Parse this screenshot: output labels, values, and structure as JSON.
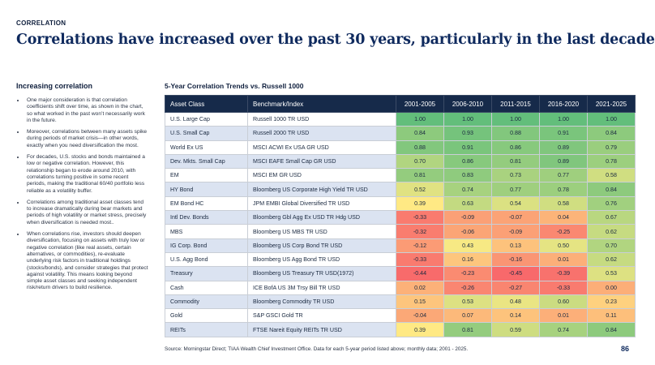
{
  "header": {
    "kicker": "CORRELATION",
    "title": "Correlations have increased over the past 30 years, particularly in the last decade"
  },
  "sidebar": {
    "title": "Increasing correlation",
    "bullets": [
      "One major consideration is that correlation coefficients shift over time, as shown in the chart, so what worked in the past won’t necessarily work in the future.",
      "Moreover, correlations between many assets spike during periods of market crisis—in other words, exactly when you need diversification the most.",
      "For decades, U.S. stocks and bonds maintained a low or negative correlation. However, this relationship began to erode around 2010, with correlations turning positive in some recent periods, making the traditional 60/40 portfolio less reliable as a volatility buffer.",
      "Correlations among traditional asset classes tend to increase dramatically during bear markets and periods of high volatility or market stress, precisely when diversification is needed most..",
      "When correlations rise, investors should deepen diversification, focusing on assets with truly low or negative correlation (like real assets, certain alternatives, or commodities), re-evaluate underlying risk factors in traditional holdings (stocks/bonds), and consider strategies that protect against volatility. This means looking beyond simple asset classes and seeking independent risk/return drivers to build resilience."
    ]
  },
  "table": {
    "title": "5-Year Correlation Trends vs. Russell 1000",
    "columns": [
      "Asset Class",
      "Benchmark/Index",
      "2001-2005",
      "2006-2010",
      "2011-2015",
      "2016-2020",
      "2021-2025"
    ],
    "rows": [
      {
        "asset": "U.S. Large Cap",
        "index": "Russell 1000 TR USD",
        "values": [
          "1.00",
          "1.00",
          "1.00",
          "1.00",
          "1.00"
        ]
      },
      {
        "asset": "U.S. Small Cap",
        "index": "Russell 2000 TR USD",
        "values": [
          "0.84",
          "0.93",
          "0.88",
          "0.91",
          "0.84"
        ]
      },
      {
        "asset": "World Ex US",
        "index": "MSCI ACWI Ex USA GR USD",
        "values": [
          "0.88",
          "0.91",
          "0.86",
          "0.89",
          "0.79"
        ]
      },
      {
        "asset": "Dev. Mkts. Small  Cap",
        "index": "MSCI EAFE Small Cap GR USD",
        "values": [
          "0.70",
          "0.86",
          "0.81",
          "0.89",
          "0.78"
        ]
      },
      {
        "asset": "EM",
        "index": "MSCI EM GR USD",
        "values": [
          "0.81",
          "0.83",
          "0.73",
          "0.77",
          "0.58"
        ]
      },
      {
        "asset": "HY Bond",
        "index": "Bloomberg US Corporate High Yield TR USD",
        "values": [
          "0.52",
          "0.74",
          "0.77",
          "0.78",
          "0.84"
        ]
      },
      {
        "asset": "EM Bond HC",
        "index": "JPM EMBI Global Diversified TR USD",
        "values": [
          "0.39",
          "0.63",
          "0.54",
          "0.58",
          "0.76"
        ]
      },
      {
        "asset": "Intl Dev. Bonds",
        "index": "Bloomberg Gbl Agg Ex USD TR Hdg USD",
        "values": [
          "-0.33",
          "-0.09",
          "-0.07",
          "0.04",
          "0.67"
        ]
      },
      {
        "asset": "MBS",
        "index": "Bloomberg US MBS TR USD",
        "values": [
          "-0.32",
          "-0.06",
          "-0.09",
          "-0.25",
          "0.62"
        ]
      },
      {
        "asset": "IG Corp. Bond",
        "index": "Bloomberg US Corp Bond TR USD",
        "values": [
          "-0.12",
          "0.43",
          "0.13",
          "0.50",
          "0.70"
        ]
      },
      {
        "asset": "U.S. Agg Bond",
        "index": "Bloomberg US Agg Bond TR USD",
        "values": [
          "-0.33",
          "0.16",
          "-0.16",
          "0.01",
          "0.62"
        ]
      },
      {
        "asset": "Treasury",
        "index": "Bloomberg US Treasury TR USD(1972)",
        "values": [
          "-0.44",
          "-0.23",
          "-0.45",
          "-0.39",
          "0.53"
        ]
      },
      {
        "asset": "Cash",
        "index": "ICE BofA US 3M Trsy Bill TR USD",
        "values": [
          "0.02",
          "-0.26",
          "-0.27",
          "-0.33",
          "0.00"
        ]
      },
      {
        "asset": "Commodity",
        "index": "Bloomberg Commodity TR USD",
        "values": [
          "0.15",
          "0.53",
          "0.48",
          "0.60",
          "0.23"
        ]
      },
      {
        "asset": "Gold",
        "index": "S&P GSCI Gold TR",
        "values": [
          "-0.04",
          "0.07",
          "0.14",
          "0.01",
          "0.11"
        ]
      },
      {
        "asset": "REITs",
        "index": "FTSE Nareit Equity REITs TR USD",
        "values": [
          "0.39",
          "0.81",
          "0.59",
          "0.74",
          "0.84"
        ]
      }
    ],
    "colors": {
      "label_fill_a": "#dbe3f1",
      "label_fill_b": "#ffffff",
      "scale_low": "#f8696b",
      "scale_mid": "#ffeb84",
      "scale_high": "#63be7b"
    }
  },
  "footer": {
    "source": "Source: Morningstar Direct; TIAA Wealth Chief Investment Office.  Data for each 5-year period listed above; monthly data; 2001 - 2025.",
    "page_number": "86"
  }
}
